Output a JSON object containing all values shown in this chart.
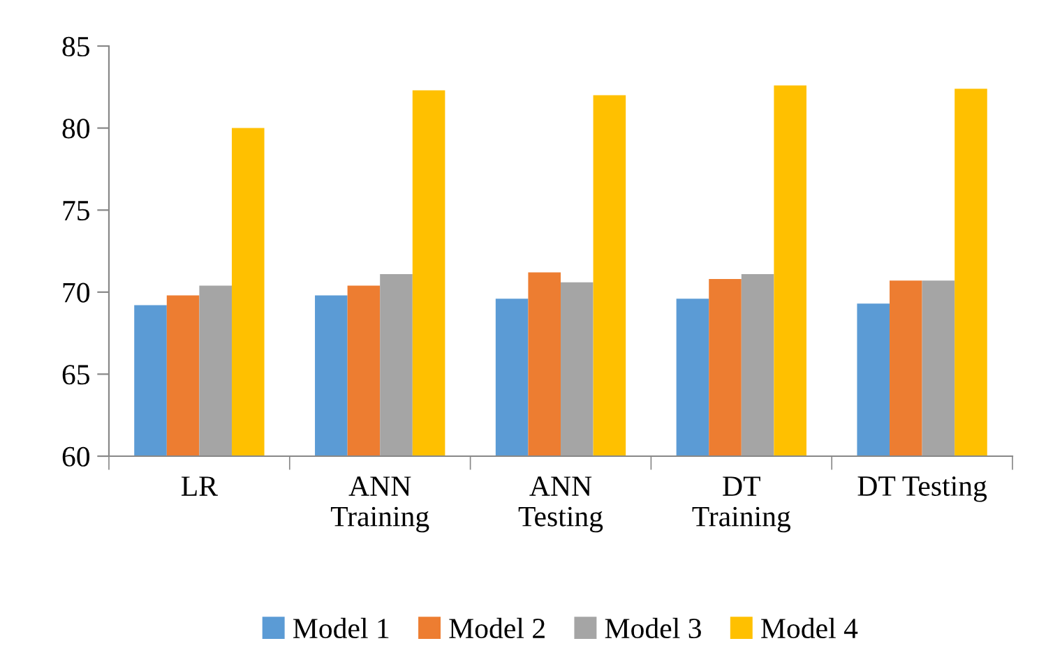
{
  "chart_data": {
    "type": "bar",
    "categories": [
      "LR",
      "ANN\nTraining",
      "ANN\nTesting",
      "DT\nTraining",
      "DT Testing"
    ],
    "series": [
      {
        "name": "Model 1",
        "color": "#5b9bd5",
        "values": [
          69.2,
          69.8,
          69.6,
          69.6,
          69.3
        ]
      },
      {
        "name": "Model 2",
        "color": "#ed7d31",
        "values": [
          69.8,
          70.4,
          71.2,
          70.8,
          70.7
        ]
      },
      {
        "name": "Model 3",
        "color": "#a5a5a5",
        "values": [
          70.4,
          71.1,
          70.6,
          71.1,
          70.7
        ]
      },
      {
        "name": "Model 4",
        "color": "#ffc000",
        "values": [
          80.0,
          82.3,
          82.0,
          82.6,
          82.4
        ]
      }
    ],
    "ylim": [
      60,
      85
    ],
    "yticks": [
      60,
      65,
      70,
      75,
      80,
      85
    ],
    "grid": false,
    "legend": "bottom"
  }
}
